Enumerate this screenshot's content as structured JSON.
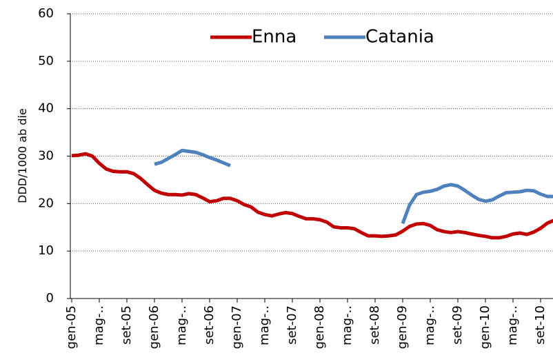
{
  "chart_data": {
    "type": "line",
    "y_label": "DDD/1000 ab die",
    "categories": [
      "gen-05",
      null,
      null,
      null,
      "mag-..",
      null,
      null,
      null,
      "set-05",
      null,
      null,
      null,
      "gen-06",
      null,
      null,
      null,
      "mag-..",
      null,
      null,
      null,
      "set-06",
      null,
      null,
      null,
      "gen-07",
      null,
      null,
      null,
      "mag-..",
      null,
      null,
      null,
      "set-07",
      null,
      null,
      null,
      "gen-08",
      null,
      null,
      null,
      "mag-..",
      null,
      null,
      null,
      "set-08",
      null,
      null,
      null,
      "gen-09",
      null,
      null,
      null,
      "mag-..",
      null,
      null,
      null,
      "set-09",
      null,
      null,
      null,
      "gen-10",
      null,
      null,
      null,
      "mag-..",
      null,
      null,
      null,
      "set-10",
      null,
      null
    ],
    "series": [
      {
        "name": "Enna",
        "color": "#c00000",
        "values": [
          30.1,
          30.2,
          30.5,
          30,
          28.5,
          27.3,
          26.8,
          26.7,
          26.7,
          26.3,
          25.3,
          24,
          22.8,
          22.2,
          21.9,
          21.9,
          21.8,
          22.1,
          21.9,
          21.2,
          20.4,
          20.6,
          21.1,
          21.1,
          20.6,
          19.8,
          19.3,
          18.2,
          17.7,
          17.4,
          17.8,
          18.1,
          17.9,
          17.3,
          16.8,
          16.8,
          16.6,
          16.1,
          15.1,
          14.9,
          14.9,
          14.7,
          13.9,
          13.2,
          13.2,
          13.1,
          13.2,
          13.4,
          14.2,
          15.2,
          15.7,
          15.8,
          15.4,
          14.5,
          14.1,
          13.9,
          14.1,
          13.9,
          13.6,
          13.3,
          13.1,
          12.8,
          12.8,
          13.1,
          13.6,
          13.8,
          13.5,
          14,
          14.8,
          15.9,
          16.5
        ]
      },
      {
        "name": "Catania",
        "color": "#4f81bd",
        "values": [
          null,
          null,
          null,
          null,
          null,
          null,
          null,
          null,
          null,
          null,
          null,
          null,
          28.3,
          28.7,
          29.5,
          30.3,
          31.2,
          31,
          30.8,
          30.3,
          29.7,
          29.2,
          28.6,
          28,
          null,
          null,
          null,
          null,
          null,
          null,
          null,
          null,
          null,
          null,
          null,
          null,
          null,
          null,
          null,
          null,
          null,
          null,
          null,
          null,
          null,
          null,
          null,
          null,
          15.8,
          19.7,
          21.9,
          22.4,
          22.6,
          23,
          23.7,
          24,
          23.7,
          22.8,
          21.8,
          20.9,
          20.5,
          20.8,
          21.6,
          22.3,
          22.4,
          22.5,
          22.8,
          22.7,
          22,
          21.5,
          21.5
        ]
      }
    ],
    "ylim": [
      0,
      60
    ],
    "yticks": [
      0,
      10,
      20,
      30,
      40,
      50,
      60
    ],
    "grid": true,
    "legend": "top"
  }
}
